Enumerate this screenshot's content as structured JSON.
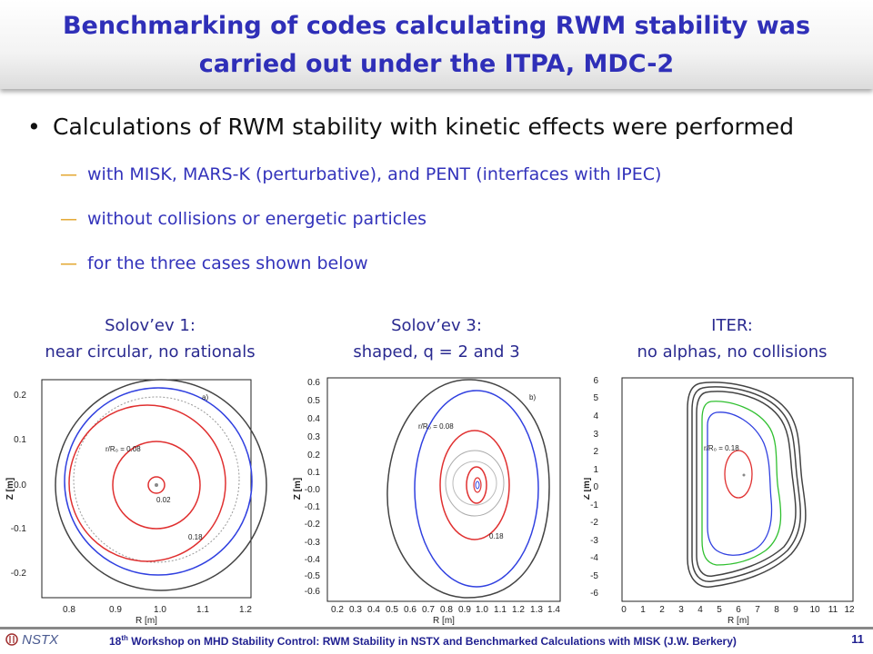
{
  "slide": {
    "title_line1": "Benchmarking of codes calculating RWM stability was",
    "title_line2": "carried out under the ITPA, MDC-2",
    "bullet": "Calculations of RWM stability with kinetic effects were performed",
    "bullet_symbol": "•",
    "dash_symbol": "—",
    "sub_items": [
      "with MISK, MARS-K (perturbative), and PENT (interfaces with IPEC)",
      "without collisions or energetic particles",
      "for the three cases shown below"
    ]
  },
  "panels": [
    {
      "caption_line1": "Solov’ev 1:",
      "caption_line2": "near circular, no rationals",
      "panel_label": "a)",
      "xlabel": "R [m]",
      "ylabel": "Z [m]",
      "xticks": [
        "0.8",
        "0.9",
        "1.0",
        "1.1",
        "1.2"
      ],
      "yticks": [
        "0.2",
        "0.1",
        "0.0",
        "-0.1",
        "-0.2"
      ],
      "annotations": [
        "r/R₀ = 0.08",
        "0.02",
        "0.18"
      ]
    },
    {
      "caption_line1": "Solov’ev 3:",
      "caption_line2": "shaped, q = 2 and 3",
      "panel_label": "b)",
      "xlabel": "R [m]",
      "ylabel": "Z [m]",
      "xticks": [
        "0.2",
        "0.3",
        "0.4",
        "0.5",
        "0.6",
        "0.7",
        "0.8",
        "0.9",
        "1.0",
        "1.1",
        "1.2",
        "1.3",
        "1.4"
      ],
      "yticks": [
        "0.6",
        "0.5",
        "0.4",
        "0.3",
        "0.2",
        "0.1",
        "-0.0",
        "-0.1",
        "-0.2",
        "-0.3",
        "-0.4",
        "-0.5",
        "-0.6"
      ],
      "annotations": [
        "r/R₀ = 0.08",
        "0.18"
      ]
    },
    {
      "caption_line1": "ITER:",
      "caption_line2": "no alphas, no collisions",
      "panel_label": "",
      "xlabel": "R [m]",
      "ylabel": "Z [m]",
      "xticks": [
        "0",
        "1",
        "2",
        "3",
        "4",
        "5",
        "6",
        "7",
        "8",
        "9",
        "10",
        "11",
        "12"
      ],
      "yticks": [
        "6",
        "5",
        "4",
        "3",
        "2",
        "1",
        "0",
        "-1",
        "-2",
        "-3",
        "-4",
        "-5",
        "-6"
      ],
      "annotations": [
        "r/R₀ = 0.18"
      ]
    }
  ],
  "footer": {
    "logo": "NSTX",
    "text_pre": "18",
    "text_sup": "th",
    "text_post": " Workshop on MHD Stability Control: RWM Stability in NSTX and Benchmarked Calculations with MISK (J.W. Berkery)",
    "page": "11"
  },
  "colors": {
    "title": "#2f2fb8",
    "subbullet": "#3333bb",
    "contour_red": "#e03030",
    "contour_blue": "#3040e0",
    "contour_green": "#30c030",
    "wall": "#333333"
  }
}
